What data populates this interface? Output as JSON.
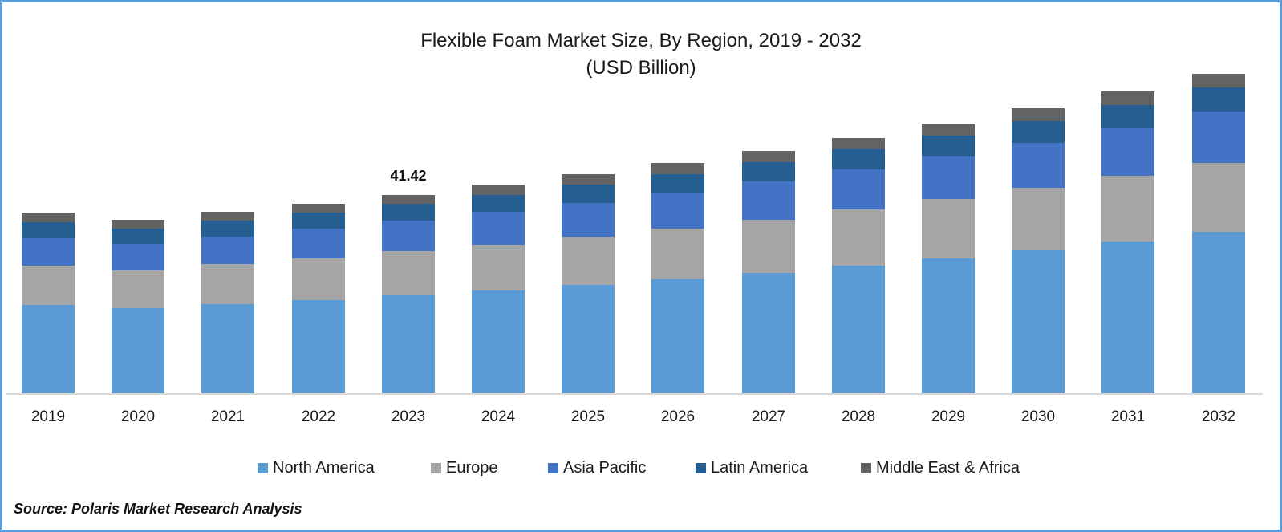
{
  "chart_data": {
    "type": "bar",
    "stacked": true,
    "title": "Flexible Foam Market Size, By Region, 2019 - 2032",
    "subtitle": "(USD Billion)",
    "xlabel": "",
    "ylabel": "",
    "categories": [
      "2019",
      "2020",
      "2021",
      "2022",
      "2023",
      "2024",
      "2025",
      "2026",
      "2027",
      "2028",
      "2029",
      "2030",
      "2031",
      "2032"
    ],
    "series": [
      {
        "name": "North America",
        "color": "#5b9bd5",
        "values": [
          18.45,
          17.78,
          18.61,
          19.45,
          20.46,
          21.46,
          22.64,
          23.81,
          25.15,
          26.66,
          28.17,
          29.85,
          31.69,
          33.71
        ]
      },
      {
        "name": "Europe",
        "color": "#a5a5a5",
        "values": [
          8.22,
          7.88,
          8.38,
          8.72,
          9.22,
          9.56,
          10.06,
          10.56,
          11.07,
          11.74,
          12.41,
          13.08,
          13.75,
          14.42
        ]
      },
      {
        "name": "Asia Pacific",
        "color": "#4472c4",
        "values": [
          5.87,
          5.53,
          5.7,
          6.2,
          6.37,
          6.88,
          7.04,
          7.55,
          8.05,
          8.38,
          8.89,
          9.39,
          9.89,
          10.73
        ]
      },
      {
        "name": "Latin America",
        "color": "#255e91",
        "values": [
          3.19,
          3.19,
          3.35,
          3.35,
          3.52,
          3.52,
          3.86,
          3.86,
          4.02,
          4.19,
          4.36,
          4.53,
          4.86,
          5.03
        ]
      },
      {
        "name": "Middle East & Africa",
        "color": "#636363",
        "values": [
          2.01,
          1.84,
          1.84,
          1.84,
          1.84,
          2.18,
          2.18,
          2.35,
          2.35,
          2.35,
          2.52,
          2.68,
          2.85,
          2.85
        ]
      }
    ],
    "annotations": [
      {
        "category": "2023",
        "text": "41.42"
      }
    ],
    "legend_position": "bottom",
    "grid": false,
    "ylim": [
      0,
      70
    ]
  },
  "header": {
    "title": "Flexible Foam Market Size, By Region, 2019 - 2032",
    "subtitle": "(USD Billion)"
  },
  "data_label": "41.42",
  "legend": [
    {
      "label": "North America",
      "color": "#5b9bd5"
    },
    {
      "label": "Europe",
      "color": "#a5a5a5"
    },
    {
      "label": "Asia Pacific",
      "color": "#4472c4"
    },
    {
      "label": "Latin America",
      "color": "#255e91"
    },
    {
      "label": "Middle East & Africa",
      "color": "#636363"
    }
  ],
  "source": "Source: Polaris Market Research Analysis",
  "frame_color": "#5b9bd5"
}
